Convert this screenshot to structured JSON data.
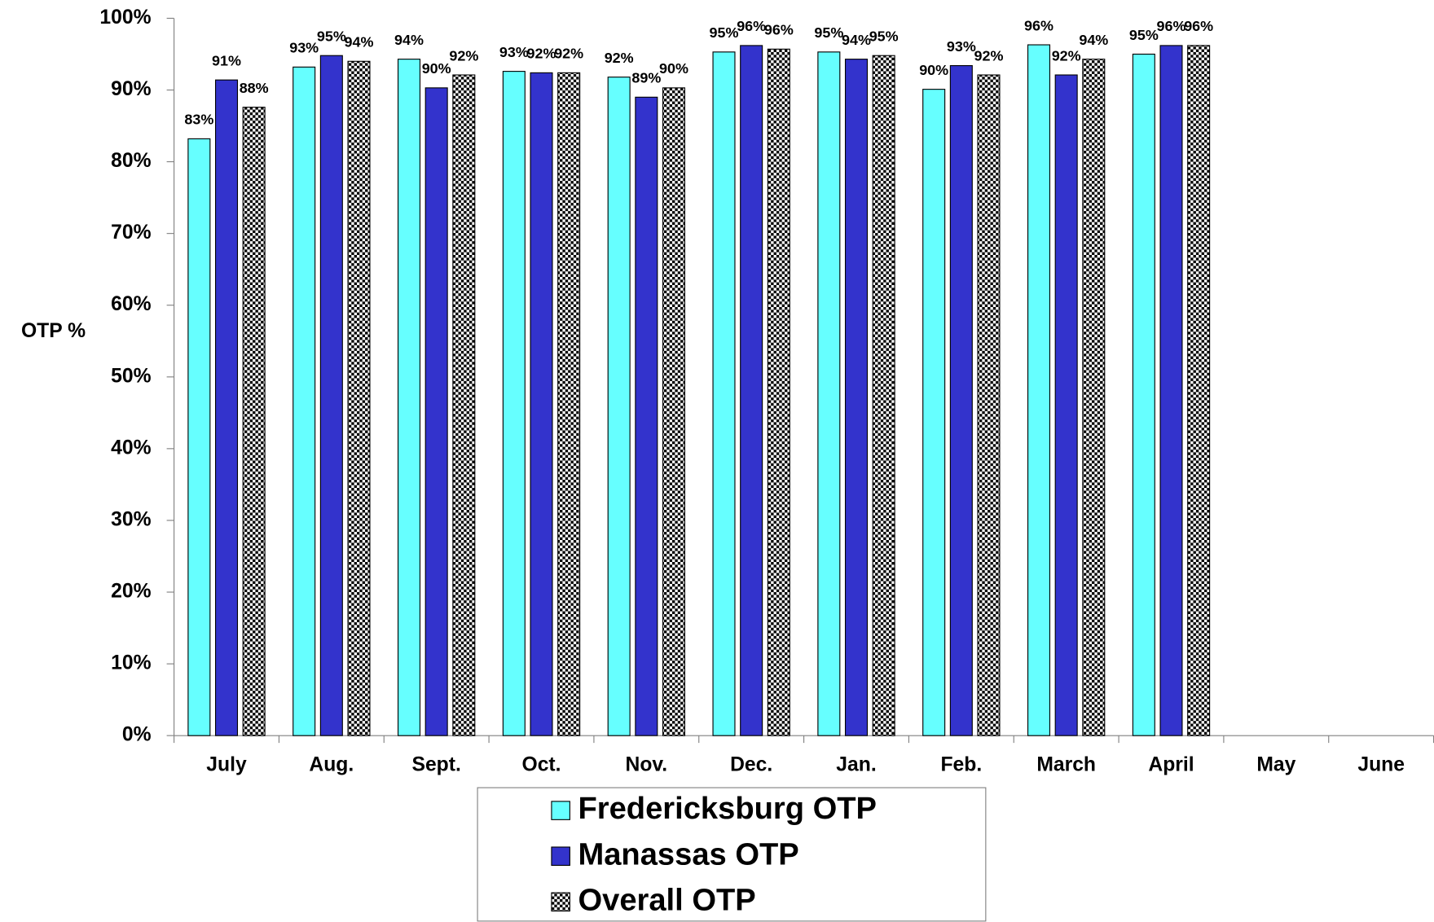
{
  "chart_data": {
    "type": "bar",
    "y_label": "OTP %",
    "categories": [
      "July",
      "Aug.",
      "Sept.",
      "Oct.",
      "Nov.",
      "Dec.",
      "Jan.",
      "Feb.",
      "March",
      "April",
      "May",
      "June"
    ],
    "series": [
      {
        "name": "Fredericksburg OTP",
        "color": "#66ffff",
        "values": [
          83.2,
          93.2,
          94.3,
          92.6,
          91.8,
          95.3,
          95.3,
          90.1,
          96.3,
          95.0,
          null,
          null
        ],
        "value_labels": [
          "83%",
          "93%",
          "94%",
          "93%",
          "92%",
          "95%",
          "95%",
          "90%",
          "96%",
          "95%",
          null,
          null
        ]
      },
      {
        "name": "Manassas OTP",
        "color": "#3333cc",
        "values": [
          91.4,
          94.8,
          90.3,
          92.4,
          89.0,
          96.2,
          94.3,
          93.4,
          92.1,
          96.2,
          null,
          null
        ],
        "value_labels": [
          "91%",
          "95%",
          "90%",
          "92%",
          "89%",
          "96%",
          "94%",
          "93%",
          "92%",
          "96%",
          null,
          null
        ]
      },
      {
        "name": "Overall OTP",
        "color": "checker",
        "values": [
          87.6,
          94.0,
          92.1,
          92.4,
          90.3,
          95.7,
          94.8,
          92.1,
          94.3,
          96.2,
          null,
          null
        ],
        "value_labels": [
          "88%",
          "94%",
          "92%",
          "92%",
          "90%",
          "96%",
          "95%",
          "92%",
          "94%",
          "96%",
          null,
          null
        ]
      }
    ],
    "ylim": [
      0,
      100
    ],
    "yticks": [
      {
        "value": 0,
        "label": "0%"
      },
      {
        "value": 10,
        "label": "10%"
      },
      {
        "value": 20,
        "label": "20%"
      },
      {
        "value": 30,
        "label": "30%"
      },
      {
        "value": 40,
        "label": "40%"
      },
      {
        "value": 50,
        "label": "50%"
      },
      {
        "value": 60,
        "label": "60%"
      },
      {
        "value": 70,
        "label": "70%"
      },
      {
        "value": 80,
        "label": "80%"
      },
      {
        "value": 90,
        "label": "90%"
      },
      {
        "value": 100,
        "label": "100%"
      }
    ],
    "legend": "bottom"
  }
}
